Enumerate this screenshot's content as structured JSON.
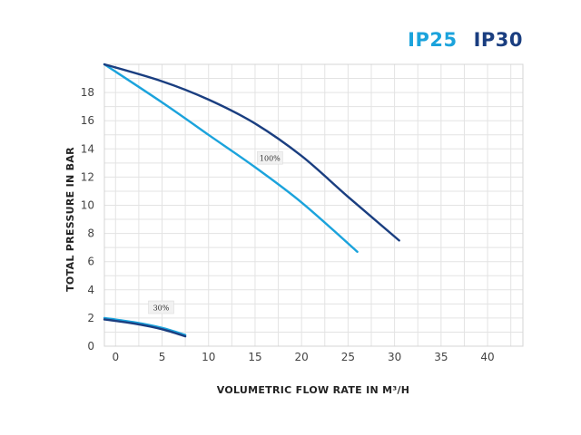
{
  "chart_data": {
    "type": "line",
    "title": "",
    "xlabel": "VOLUMETRIC FLOW RATE IN M³/H",
    "ylabel": "TOTAL PRESSURE IN BAR",
    "xlim": [
      -1.2,
      43.8
    ],
    "ylim": [
      0,
      20
    ],
    "xticks": [
      0,
      5,
      10,
      15,
      20,
      25,
      30,
      35,
      40
    ],
    "yticks": [
      0,
      2,
      4,
      6,
      8,
      10,
      12,
      14,
      16,
      18
    ],
    "grid": true,
    "legend_position": "top-right",
    "series": [
      {
        "name": "IP25",
        "color": "#1ba3dc",
        "curves": [
          {
            "label": "100%",
            "x": [
              -1.2,
              5,
              10,
              15,
              20,
              26
            ],
            "y": [
              20,
              17.3,
              15.0,
              12.7,
              10.2,
              6.7
            ]
          },
          {
            "label": "30%",
            "x": [
              -1.2,
              2,
              5,
              7.5
            ],
            "y": [
              2.0,
              1.7,
              1.3,
              0.8
            ]
          }
        ]
      },
      {
        "name": "IP30",
        "color": "#1a3e80",
        "curves": [
          {
            "label": "100%",
            "x": [
              -1.2,
              5,
              10,
              15,
              20,
              25,
              30.5
            ],
            "y": [
              20,
              18.8,
              17.5,
              15.8,
              13.5,
              10.6,
              7.5
            ]
          },
          {
            "label": "30%",
            "x": [
              -1.2,
              2,
              5,
              7.5
            ],
            "y": [
              1.9,
              1.6,
              1.2,
              0.7
            ]
          }
        ]
      }
    ],
    "annotations": [
      {
        "text": "100%",
        "x": 16.6,
        "y": 13.3
      },
      {
        "text": "30%",
        "x": 4.9,
        "y": 2.7
      }
    ]
  }
}
